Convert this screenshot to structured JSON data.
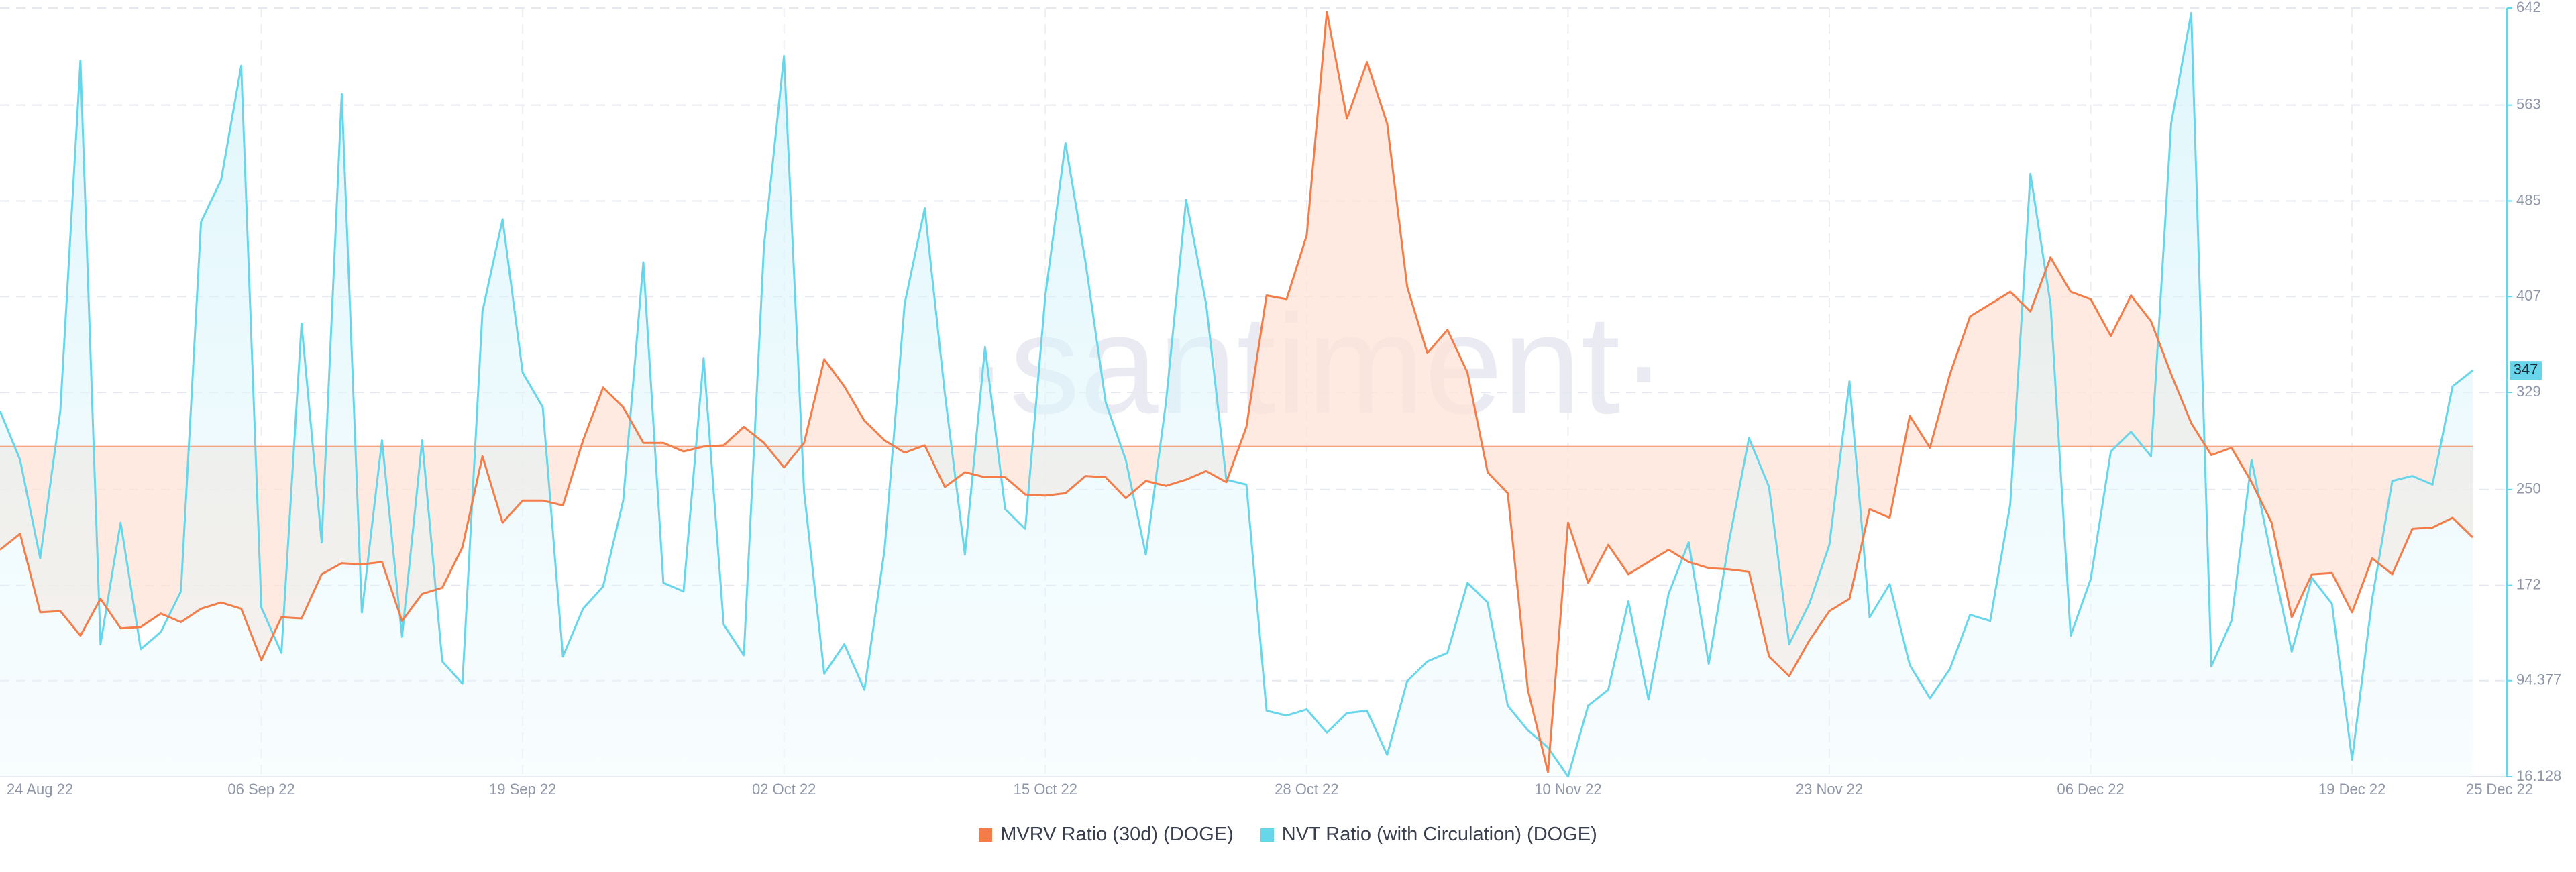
{
  "chart_data": {
    "type": "line",
    "watermark": "·santiment·",
    "categories": [
      "24 Aug 22",
      null,
      null,
      null,
      null,
      null,
      null,
      null,
      null,
      null,
      null,
      null,
      null,
      "06 Sep 22",
      null,
      null,
      null,
      null,
      null,
      null,
      null,
      null,
      null,
      null,
      null,
      null,
      "19 Sep 22",
      null,
      null,
      null,
      null,
      null,
      null,
      null,
      null,
      null,
      null,
      null,
      null,
      "02 Oct 22",
      null,
      null,
      null,
      null,
      null,
      null,
      null,
      null,
      null,
      null,
      null,
      null,
      "15 Oct 22",
      null,
      null,
      null,
      null,
      null,
      null,
      null,
      null,
      null,
      null,
      null,
      null,
      "28 Oct 22",
      null,
      null,
      null,
      null,
      null,
      null,
      null,
      null,
      null,
      null,
      null,
      null,
      "10 Nov 22",
      null,
      null,
      null,
      null,
      null,
      null,
      null,
      null,
      null,
      null,
      null,
      null,
      "23 Nov 22",
      null,
      null,
      null,
      null,
      null,
      null,
      null,
      null,
      null,
      null,
      null,
      null,
      "06 Dec 22",
      null,
      null,
      null,
      null,
      null,
      null,
      null,
      null,
      null,
      null,
      null,
      null,
      "19 Dec 22",
      null,
      null,
      null,
      null,
      null,
      "25 Dec 22"
    ],
    "series": [
      {
        "name": "MVRV Ratio (30d) (DOGE)",
        "color": "#f47c48",
        "fill": "#fde3d6",
        "values": [
          201,
          214,
          150,
          151,
          131,
          161,
          137,
          138,
          149,
          142,
          153,
          158,
          153,
          111,
          146,
          145,
          181,
          190,
          189,
          191,
          143,
          165,
          170,
          203,
          277,
          223,
          241,
          241,
          237,
          290,
          333,
          317,
          288,
          288,
          281,
          285,
          286,
          301,
          288,
          268,
          288,
          356,
          334,
          306,
          290,
          280,
          286,
          252,
          264,
          260,
          260,
          246,
          245,
          247,
          261,
          260,
          243,
          257,
          253,
          258,
          265,
          256,
          301,
          408,
          405,
          457,
          639,
          552,
          598,
          548,
          415,
          361,
          380,
          345,
          264,
          247,
          87,
          20,
          223,
          174,
          205,
          181,
          191,
          201,
          191,
          186,
          185,
          183,
          114,
          98,
          127,
          151,
          161,
          234,
          227,
          310,
          284,
          344,
          391,
          401,
          411,
          395,
          439,
          411,
          405,
          375,
          408,
          387,
          344,
          304,
          278,
          284,
          256,
          223,
          146,
          181,
          182,
          150,
          194,
          181,
          218,
          219,
          227,
          211
        ]
      },
      {
        "name": "NVT Ratio (with Circulation) (DOGE)",
        "color": "#68d6ea",
        "fill": "#d6f4fb",
        "values": [
          314,
          274,
          194,
          314,
          599,
          124,
          223,
          120,
          134,
          167,
          468,
          502,
          595,
          154,
          117,
          385,
          207,
          572,
          150,
          290,
          130,
          290,
          110,
          92,
          395,
          470,
          345,
          317,
          114,
          153,
          171,
          241,
          435,
          174,
          167,
          357,
          140,
          115,
          448,
          603,
          248,
          100,
          124,
          87,
          201,
          401,
          479,
          328,
          197,
          366,
          234,
          218,
          408,
          532,
          435,
          321,
          274,
          197,
          321,
          486,
          401,
          258,
          254,
          70,
          66,
          71,
          52,
          68,
          70,
          34,
          94,
          110,
          117,
          174,
          158,
          74,
          54,
          40,
          16.128,
          74,
          87,
          159,
          79,
          165,
          207,
          108,
          207,
          292,
          252,
          124,
          157,
          205,
          338,
          146,
          173,
          107,
          80,
          104,
          148,
          143,
          238,
          507,
          401,
          131,
          177,
          281,
          297,
          277,
          548,
          638,
          106,
          143,
          274,
          194,
          118,
          178,
          157,
          30,
          161,
          257,
          261,
          254,
          334,
          347
        ]
      }
    ],
    "ylim": [
      16.128,
      642
    ],
    "yticks": [
      16.128,
      94.377,
      172,
      250,
      329,
      407,
      485,
      563,
      642
    ],
    "reference_line": 285,
    "grid": true
  }
}
